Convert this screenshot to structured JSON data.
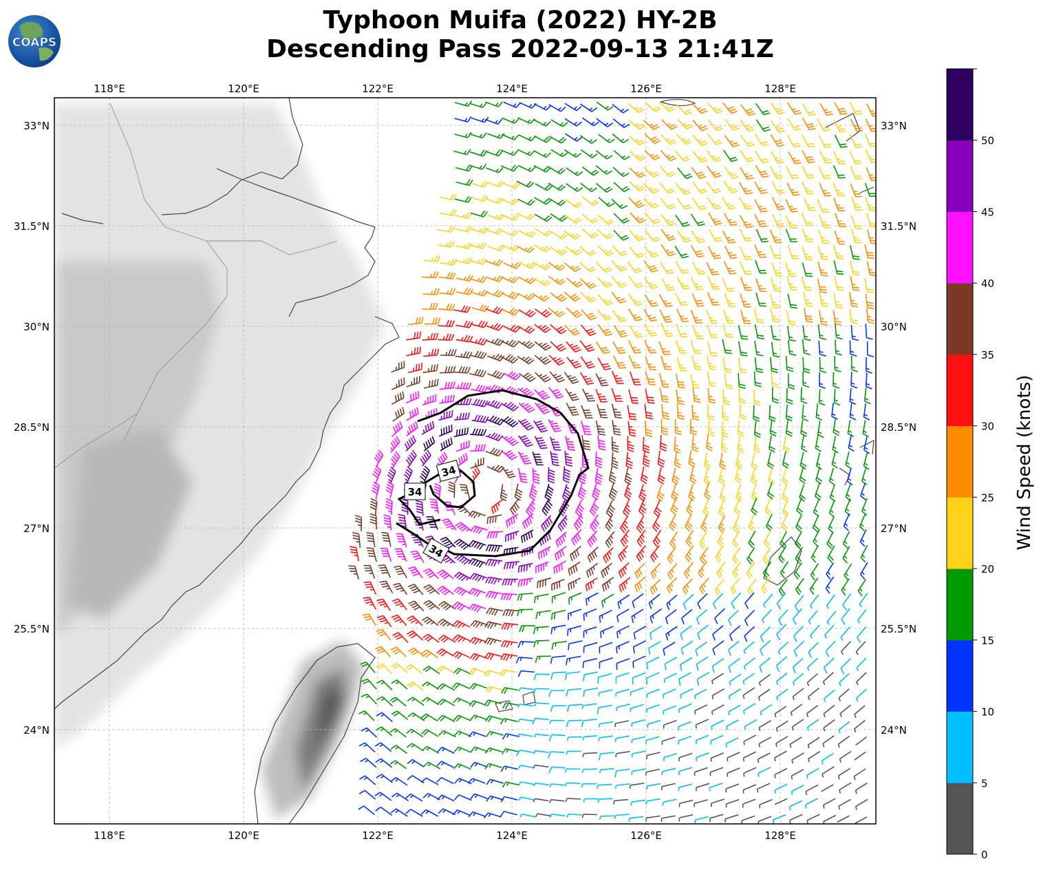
{
  "title_line1": "Typhoon Muifa (2022) HY-2B",
  "title_line2": "Descending Pass 2022-09-13 21:41Z",
  "logo_text": "COAPS",
  "lon_ticks": [
    "118°E",
    "120°E",
    "122°E",
    "124°E",
    "126°E",
    "128°E"
  ],
  "lat_ticks": [
    "33°N",
    "31.5°N",
    "30°N",
    "28.5°N",
    "27°N",
    "25.5°N",
    "24°N"
  ],
  "colorbar": {
    "label": "Wind Speed (knots)",
    "ticks": [
      "0",
      "5",
      "10",
      "15",
      "20",
      "25",
      "30",
      "35",
      "40",
      "45",
      "50"
    ],
    "colors": [
      "#555555",
      "#00bfff",
      "#0033ff",
      "#009900",
      "#ffd21a",
      "#ff8c00",
      "#ff1010",
      "#7a3a26",
      "#ff10ff",
      "#8800bb",
      "#2d0060"
    ]
  },
  "contour_labels": [
    "34",
    "34",
    "34"
  ],
  "chart_data": {
    "type": "wind_barbs",
    "storm": "Typhoon Muifa (2022)",
    "satellite": "HY-2B",
    "pass": "Descending",
    "time": "2022-09-13 21:41Z",
    "lon_range": [
      117.2,
      129.4
    ],
    "lat_range": [
      22.6,
      33.4
    ],
    "center_approx": {
      "lon": 123.6,
      "lat": 27.6
    },
    "units": "knots",
    "bins": [
      0,
      5,
      10,
      15,
      20,
      25,
      30,
      35,
      40,
      45,
      50,
      55
    ],
    "contour": {
      "value": 34,
      "label": "34"
    }
  }
}
